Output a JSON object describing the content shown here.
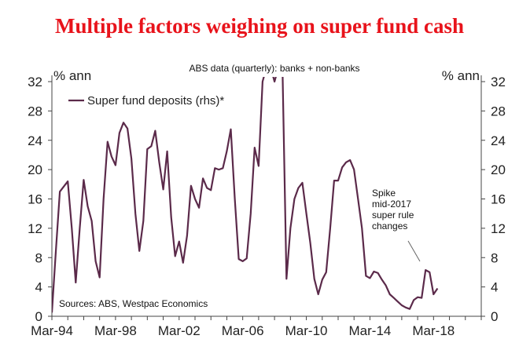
{
  "title": "Multiple factors weighing on super fund cash",
  "chart_data": {
    "type": "line",
    "subtitle": "ABS data (quarterly): banks + non-banks",
    "ylabel_left": "% ann",
    "ylabel_right": "% ann",
    "ylim": [
      0,
      32
    ],
    "yticks": [
      0,
      4,
      8,
      12,
      16,
      20,
      24,
      28,
      32
    ],
    "xticks": [
      "Mar-94",
      "Mar-98",
      "Mar-02",
      "Mar-06",
      "Mar-10",
      "Mar-14",
      "Mar-18"
    ],
    "xrange": [
      1994.0,
      2021.0
    ],
    "grid": false,
    "legend_position": "top-left",
    "source": "Sources: ABS, Westpac Economics",
    "annotation": [
      "Spike",
      "mid-2017",
      "super rule",
      "changes"
    ],
    "colors": {
      "line": "#5b2a4a",
      "title": "#e8131b"
    },
    "series": [
      {
        "name": "Super fund deposits (rhs)*",
        "x": [
          1994.0,
          1994.25,
          1994.5,
          1994.75,
          1995.0,
          1995.25,
          1995.5,
          1995.75,
          1996.0,
          1996.25,
          1996.5,
          1996.75,
          1997.0,
          1997.25,
          1997.5,
          1997.75,
          1998.0,
          1998.25,
          1998.5,
          1998.75,
          1999.0,
          1999.25,
          1999.5,
          1999.75,
          2000.0,
          2000.25,
          2000.5,
          2000.75,
          2001.0,
          2001.25,
          2001.5,
          2001.75,
          2002.0,
          2002.25,
          2002.5,
          2002.75,
          2003.0,
          2003.25,
          2003.5,
          2003.75,
          2004.0,
          2004.25,
          2004.5,
          2004.75,
          2005.0,
          2005.25,
          2005.5,
          2005.75,
          2006.0,
          2006.25,
          2006.5,
          2006.75,
          2007.0,
          2007.25,
          2007.5,
          2007.75,
          2008.0,
          2008.25,
          2008.5,
          2008.75,
          2009.0,
          2009.25,
          2009.5,
          2009.75,
          2010.0,
          2010.25,
          2010.5,
          2010.75,
          2011.0,
          2011.25,
          2011.5,
          2011.75,
          2012.0,
          2012.25,
          2012.5,
          2012.75,
          2013.0,
          2013.25,
          2013.5,
          2013.75,
          2014.0,
          2014.25,
          2014.5,
          2014.75,
          2015.0,
          2015.25,
          2015.5,
          2015.75,
          2016.0,
          2016.25,
          2016.5,
          2016.75,
          2017.0,
          2017.25,
          2017.5,
          2017.75,
          2018.0,
          2018.25
        ],
        "values": [
          0.5,
          9.0,
          17.0,
          17.7,
          18.4,
          12.0,
          4.6,
          12.0,
          18.6,
          15.0,
          13.0,
          7.5,
          5.3,
          16.0,
          23.8,
          21.8,
          20.6,
          25.0,
          26.4,
          25.6,
          21.5,
          14.0,
          8.9,
          13.0,
          22.8,
          23.2,
          25.3,
          21.0,
          17.3,
          22.5,
          13.5,
          8.2,
          10.2,
          7.3,
          11.0,
          17.8,
          16.0,
          14.8,
          18.8,
          17.5,
          17.2,
          20.2,
          20.0,
          20.2,
          22.5,
          25.5,
          16.0,
          7.8,
          7.5,
          7.9,
          14.0,
          23.0,
          20.5,
          32.0,
          34.0,
          34.0,
          32.0,
          34.0,
          34.0,
          5.1,
          12.0,
          16.0,
          17.5,
          18.2,
          14.0,
          10.0,
          5.1,
          3.0,
          5.0,
          6.0,
          12.0,
          18.5,
          18.5,
          20.3,
          21.0,
          21.3,
          20.0,
          16.0,
          12.0,
          5.5,
          5.2,
          6.1,
          5.9,
          5.0,
          4.2,
          3.0,
          2.5,
          2.0,
          1.5,
          1.2,
          1.0,
          2.2,
          2.6,
          2.5,
          6.3,
          6.0,
          3.0,
          3.8
        ]
      }
    ]
  }
}
